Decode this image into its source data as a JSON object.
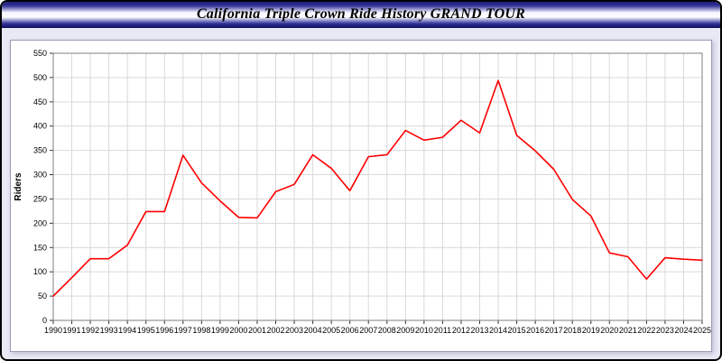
{
  "header": {
    "title": "California Triple Crown Ride History GRAND TOUR"
  },
  "colors": {
    "line": "#ff0000",
    "grid": "#d9d9d9",
    "plot_border": "#7f7f7f",
    "page_background": "#e9e9f6",
    "titlebar_navy": "#1c1c78",
    "panel_background": "#ffffff"
  },
  "chart_data": {
    "type": "line",
    "title": "California Triple Crown Ride History GRAND TOUR",
    "xlabel": "",
    "ylabel": "Riders",
    "ylim": [
      0,
      550
    ],
    "y_tick_step": 50,
    "grid": true,
    "legend": "none",
    "categories": [
      "1990",
      "1991",
      "1992",
      "1993",
      "1994",
      "1995",
      "1996",
      "1997",
      "1998",
      "1999",
      "2000",
      "2001",
      "2002",
      "2003",
      "2004",
      "2005",
      "2006",
      "2007",
      "2008",
      "2009",
      "2010",
      "2011",
      "2012",
      "2013",
      "2014",
      "2015",
      "2016",
      "2017",
      "2018",
      "2019",
      "2020",
      "2021",
      "2022",
      "2023",
      "2024",
      "2025"
    ],
    "series": [
      {
        "name": "Riders",
        "values": [
          50,
          88,
          127,
          127,
          155,
          224,
          224,
          340,
          283,
          246,
          212,
          211,
          265,
          280,
          341,
          313,
          267,
          337,
          341,
          391,
          371,
          377,
          412,
          386,
          494,
          381,
          349,
          311,
          249,
          215,
          139,
          131,
          85,
          129,
          126,
          124
        ]
      }
    ]
  }
}
